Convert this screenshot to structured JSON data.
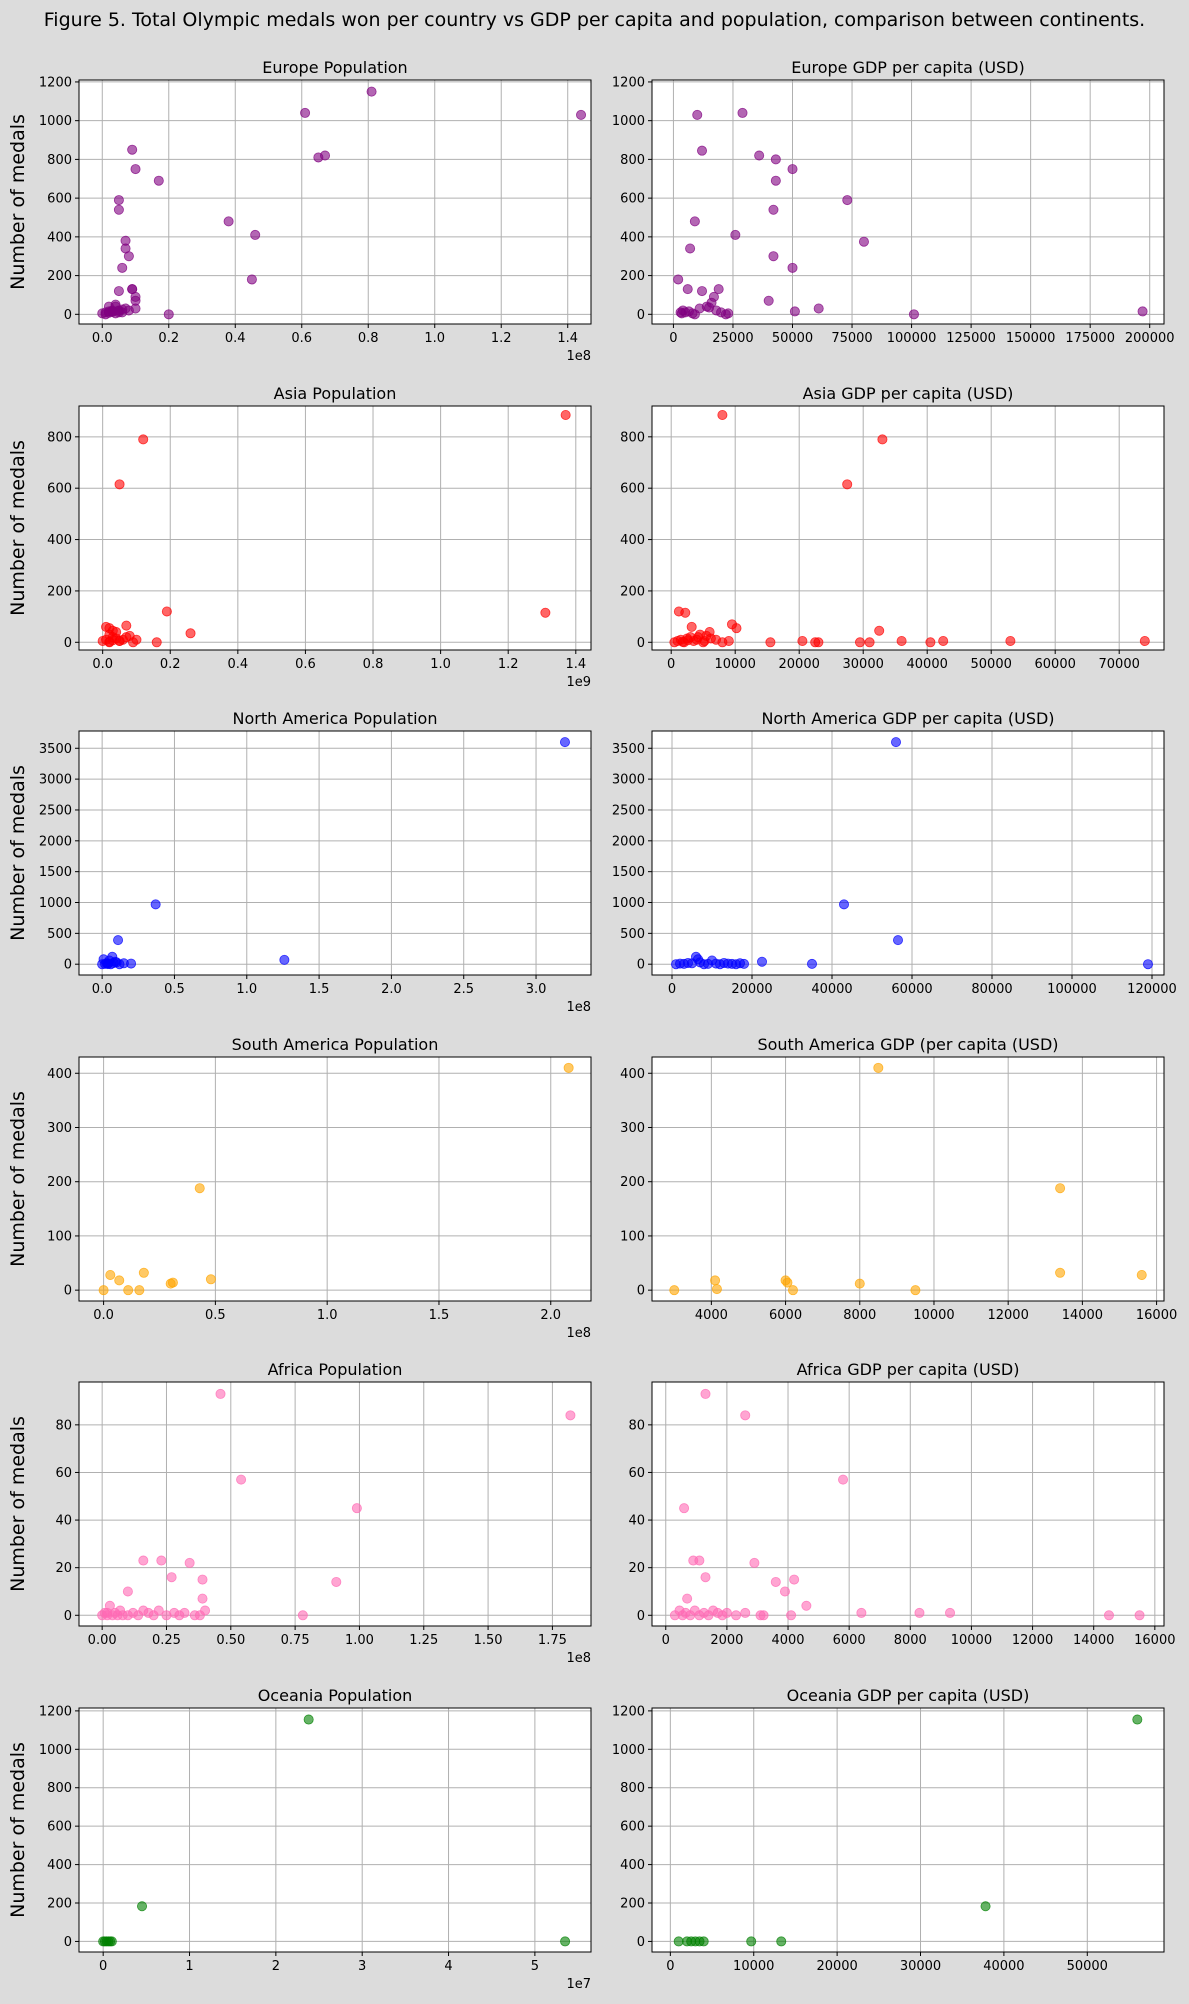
{
  "title": "Figure 5. Total Olympic medals won per country vs GDP per capita and population, comparison between continents.",
  "ylabel": "Number of medals",
  "chart_data": [
    {
      "type": "scatter",
      "title": "Europe Population",
      "xlabel": "",
      "ylabel": "Number of medals",
      "color": "#800080",
      "x_offset_label": "1e8",
      "xlim": [
        -0.07,
        1.47
      ],
      "ylim": [
        -50,
        1210
      ],
      "xticks": [
        0,
        0.2,
        0.4,
        0.6,
        0.8,
        1.0,
        1.2,
        1.4
      ],
      "xtick_labels": [
        "0.0",
        "0.2",
        "0.4",
        "0.6",
        "0.8",
        "1.0",
        "1.2",
        "1.4"
      ],
      "yticks": [
        0,
        200,
        400,
        600,
        800,
        1000,
        1200
      ],
      "x": [
        0.0,
        0.01,
        0.02,
        0.03,
        0.04,
        0.05,
        0.06,
        0.07,
        0.02,
        0.03,
        0.04,
        0.05,
        0.01,
        0.02,
        0.03,
        0.05,
        0.06,
        0.08,
        0.1,
        0.09,
        0.1,
        0.1,
        0.09,
        0.08,
        0.07,
        0.07,
        0.06,
        0.05,
        0.05,
        0.05,
        0.04,
        0.17,
        0.09,
        0.1,
        0.2,
        0.38,
        0.45,
        0.46,
        0.61,
        0.65,
        0.67,
        0.81,
        1.44
      ],
      "y": [
        5,
        10,
        15,
        20,
        5,
        10,
        25,
        30,
        40,
        15,
        50,
        20,
        0,
        8,
        12,
        18,
        10,
        20,
        30,
        130,
        90,
        70,
        130,
        300,
        380,
        340,
        240,
        590,
        540,
        120,
        40,
        690,
        850,
        750,
        0,
        480,
        180,
        410,
        1040,
        810,
        820,
        1150,
        1030
      ]
    },
    {
      "type": "scatter",
      "title": "Europe GDP per capita (USD)",
      "xlabel": "",
      "ylabel": "",
      "color": "#800080",
      "xlim": [
        -9000,
        206000
      ],
      "ylim": [
        -50,
        1210
      ],
      "xticks": [
        0,
        25000,
        50000,
        75000,
        100000,
        125000,
        150000,
        175000,
        200000
      ],
      "xtick_labels": [
        "0",
        "25000",
        "50000",
        "75000",
        "100000",
        "125000",
        "150000",
        "175000",
        "200000"
      ],
      "yticks": [
        0,
        200,
        400,
        600,
        800,
        1000,
        1200
      ],
      "x": [
        2000,
        3500,
        5000,
        6500,
        8000,
        4000,
        9000,
        11000,
        14000,
        16000,
        18000,
        20000,
        22000,
        12000,
        15000,
        17000,
        19000,
        23000,
        3000,
        6000,
        10000,
        7000,
        12000,
        9000,
        26000,
        29000,
        36000,
        40000,
        42000,
        43000,
        42000,
        43000,
        50000,
        51000,
        50000,
        61000,
        73000,
        80000,
        101000,
        197000
      ],
      "y": [
        180,
        5,
        10,
        15,
        5,
        20,
        0,
        30,
        40,
        60,
        20,
        10,
        0,
        120,
        35,
        90,
        130,
        5,
        10,
        130,
        1030,
        340,
        845,
        480,
        410,
        1040,
        820,
        70,
        540,
        800,
        300,
        690,
        750,
        15,
        240,
        30,
        590,
        375,
        0,
        15
      ]
    },
    {
      "type": "scatter",
      "title": "Asia Population",
      "xlabel": "",
      "ylabel": "Number of medals",
      "color": "#ff0000",
      "x_offset_label": "1e9",
      "xlim": [
        -0.07,
        1.445
      ],
      "ylim": [
        -30,
        920
      ],
      "xticks": [
        0,
        0.2,
        0.4,
        0.6,
        0.8,
        1.0,
        1.2,
        1.4
      ],
      "xtick_labels": [
        "0.0",
        "0.2",
        "0.4",
        "0.6",
        "0.8",
        "1.0",
        "1.2",
        "1.4"
      ],
      "yticks": [
        0,
        200,
        400,
        600,
        800
      ],
      "x": [
        0.0,
        0.01,
        0.02,
        0.03,
        0.04,
        0.02,
        0.03,
        0.01,
        0.05,
        0.06,
        0.07,
        0.02,
        0.04,
        0.08,
        0.07,
        0.09,
        0.1,
        0.02,
        0.03,
        0.05,
        0.12,
        0.05,
        0.16,
        0.19,
        0.26,
        1.31,
        1.37
      ],
      "y": [
        5,
        10,
        0,
        20,
        15,
        30,
        45,
        60,
        5,
        10,
        20,
        55,
        40,
        25,
        65,
        0,
        10,
        2,
        8,
        5,
        790,
        615,
        0,
        120,
        35,
        115,
        885
      ]
    },
    {
      "type": "scatter",
      "title": "Asia GDP per capita (USD)",
      "xlabel": "",
      "ylabel": "",
      "color": "#ff0000",
      "xlim": [
        -3000,
        77000
      ],
      "ylim": [
        -30,
        920
      ],
      "xticks": [
        0,
        10000,
        20000,
        30000,
        40000,
        50000,
        60000,
        70000
      ],
      "xtick_labels": [
        "0",
        "10000",
        "20000",
        "30000",
        "40000",
        "50000",
        "60000",
        "70000"
      ],
      "yticks": [
        0,
        200,
        400,
        600,
        800
      ],
      "x": [
        500,
        1000,
        1500,
        2000,
        2500,
        3000,
        3500,
        4000,
        4500,
        5000,
        5500,
        6000,
        1200,
        2200,
        3200,
        4200,
        5200,
        6200,
        7000,
        8000,
        9000,
        9500,
        10200,
        1800,
        2600,
        15500,
        20500,
        22500,
        23000,
        29500,
        31000,
        32500,
        36000,
        40500,
        42500,
        53000,
        74000,
        8000,
        27500,
        33000
      ],
      "y": [
        0,
        5,
        10,
        0,
        15,
        20,
        5,
        10,
        30,
        0,
        25,
        40,
        120,
        115,
        60,
        20,
        5,
        15,
        10,
        0,
        5,
        70,
        55,
        2,
        8,
        0,
        5,
        0,
        0,
        0,
        0,
        45,
        5,
        0,
        5,
        5,
        5,
        885,
        615,
        790
      ]
    },
    {
      "type": "scatter",
      "title": "North America Population",
      "xlabel": "",
      "ylabel": "Number of medals",
      "color": "#0000ff",
      "x_offset_label": "1e8",
      "xlim": [
        -0.16,
        3.38
      ],
      "ylim": [
        -175,
        3780
      ],
      "xticks": [
        0,
        0.5,
        1.0,
        1.5,
        2.0,
        2.5,
        3.0
      ],
      "xtick_labels": [
        "0.0",
        "0.5",
        "1.0",
        "1.5",
        "2.0",
        "2.5",
        "3.0"
      ],
      "yticks": [
        0,
        500,
        1000,
        1500,
        2000,
        2500,
        3000,
        3500
      ],
      "x": [
        0.0,
        0.02,
        0.04,
        0.06,
        0.08,
        0.1,
        0.03,
        0.05,
        0.07,
        0.09,
        0.15,
        0.2,
        0.12,
        0.01,
        0.04,
        0.11,
        0.37,
        1.26,
        3.2
      ],
      "y": [
        0,
        5,
        10,
        0,
        20,
        30,
        15,
        60,
        120,
        40,
        15,
        10,
        0,
        80,
        2,
        390,
        970,
        70,
        3600
      ]
    },
    {
      "type": "scatter",
      "title": "North America GDP per capita (USD)",
      "xlabel": "",
      "ylabel": "",
      "color": "#0000ff",
      "xlim": [
        -5000,
        123000
      ],
      "ylim": [
        -175,
        3780
      ],
      "xticks": [
        0,
        20000,
        40000,
        60000,
        80000,
        100000,
        120000
      ],
      "xtick_labels": [
        "0",
        "20000",
        "40000",
        "60000",
        "80000",
        "100000",
        "120000"
      ],
      "yticks": [
        0,
        500,
        1000,
        1500,
        2000,
        2500,
        3000,
        3500
      ],
      "x": [
        1000,
        2000,
        3000,
        4000,
        5000,
        6000,
        7000,
        8000,
        9000,
        10000,
        11000,
        12000,
        13000,
        14000,
        15000,
        16000,
        17000,
        18000,
        22500,
        35000,
        6500,
        43000,
        56500,
        56000,
        119000
      ],
      "y": [
        0,
        10,
        5,
        20,
        15,
        120,
        30,
        0,
        5,
        60,
        10,
        0,
        20,
        10,
        5,
        0,
        15,
        5,
        40,
        5,
        80,
        970,
        390,
        3600,
        0
      ]
    },
    {
      "type": "scatter",
      "title": "South America Population",
      "xlabel": "",
      "ylabel": "Number of medals",
      "color": "#ffa500",
      "x_offset_label": "1e8",
      "xlim": [
        -0.11,
        2.18
      ],
      "ylim": [
        -20,
        430
      ],
      "xticks": [
        0,
        0.5,
        1.0,
        1.5,
        2.0
      ],
      "xtick_labels": [
        "0.0",
        "0.5",
        "1.0",
        "1.5",
        "2.0"
      ],
      "yticks": [
        0,
        100,
        200,
        300,
        400
      ],
      "x": [
        0.0,
        0.03,
        0.07,
        0.11,
        0.16,
        0.18,
        0.3,
        0.31,
        0.43,
        0.48,
        2.08
      ],
      "y": [
        0,
        28,
        18,
        0,
        0,
        32,
        12,
        14,
        188,
        20,
        410
      ]
    },
    {
      "type": "scatter",
      "title": "South America GDP (per capita (USD)",
      "xlabel": "",
      "ylabel": "",
      "color": "#ffa500",
      "xlim": [
        2400,
        16200
      ],
      "ylim": [
        -20,
        430
      ],
      "xticks": [
        4000,
        6000,
        8000,
        10000,
        12000,
        14000,
        16000
      ],
      "xtick_labels": [
        "4000",
        "6000",
        "8000",
        "10000",
        "12000",
        "14000",
        "16000"
      ],
      "yticks": [
        0,
        100,
        200,
        300,
        400
      ],
      "x": [
        3000,
        4100,
        4150,
        6000,
        6050,
        6200,
        8000,
        8500,
        9500,
        13400,
        13400,
        15600
      ],
      "y": [
        0,
        18,
        2,
        18,
        14,
        0,
        12,
        410,
        0,
        188,
        32,
        28
      ]
    },
    {
      "type": "scatter",
      "title": "Africa Population",
      "xlabel": "",
      "ylabel": "Number of medals",
      "color": "#ff69b4",
      "x_offset_label": "1e8",
      "xlim": [
        -0.09,
        1.9
      ],
      "ylim": [
        -4.5,
        98
      ],
      "xticks": [
        0,
        0.25,
        0.5,
        0.75,
        1.0,
        1.25,
        1.5,
        1.75
      ],
      "xtick_labels": [
        "0.00",
        "0.25",
        "0.50",
        "0.75",
        "1.00",
        "1.25",
        "1.50",
        "1.75"
      ],
      "yticks": [
        0,
        20,
        40,
        60,
        80
      ],
      "x": [
        0.0,
        0.01,
        0.02,
        0.03,
        0.04,
        0.05,
        0.06,
        0.07,
        0.08,
        0.1,
        0.12,
        0.14,
        0.16,
        0.18,
        0.2,
        0.22,
        0.25,
        0.28,
        0.3,
        0.32,
        0.36,
        0.38,
        0.02,
        0.1,
        0.16,
        0.23,
        0.27,
        0.34,
        0.39,
        0.39,
        0.4,
        0.46,
        0.54,
        0.78,
        0.91,
        0.99,
        1.82
      ],
      "y": [
        0,
        1,
        0,
        4,
        0,
        1,
        0,
        2,
        0,
        0,
        1,
        0,
        2,
        1,
        0,
        2,
        0,
        1,
        0,
        1,
        0,
        0,
        1,
        10,
        23,
        23,
        16,
        22,
        15,
        7,
        2,
        93,
        57,
        0,
        14,
        45,
        84
      ]
    },
    {
      "type": "scatter",
      "title": "Africa GDP per capita (USD)",
      "xlabel": "",
      "ylabel": "",
      "color": "#ff69b4",
      "xlim": [
        -450,
        16300
      ],
      "ylim": [
        -4.5,
        98
      ],
      "xticks": [
        0,
        2000,
        4000,
        6000,
        8000,
        10000,
        12000,
        14000,
        16000
      ],
      "xtick_labels": [
        "0",
        "2000",
        "4000",
        "6000",
        "8000",
        "10000",
        "12000",
        "14000",
        "16000"
      ],
      "yticks": [
        0,
        20,
        40,
        60,
        80
      ],
      "x": [
        300,
        450,
        550,
        650,
        800,
        950,
        1100,
        1250,
        1400,
        1550,
        1700,
        1850,
        2000,
        2300,
        2600,
        3100,
        3200,
        4100,
        600,
        700,
        900,
        1100,
        1300,
        1300,
        2600,
        2900,
        3600,
        3900,
        4200,
        4600,
        5800,
        6400,
        8300,
        9300,
        14500,
        15500
      ],
      "y": [
        0,
        2,
        0,
        1,
        0,
        2,
        0,
        1,
        0,
        2,
        1,
        0,
        1,
        0,
        1,
        0,
        0,
        0,
        45,
        7,
        23,
        23,
        93,
        16,
        84,
        22,
        14,
        10,
        15,
        4,
        57,
        1,
        1,
        1,
        0,
        0
      ]
    },
    {
      "type": "scatter",
      "title": "Oceania Population",
      "xlabel": "",
      "ylabel": "Number of medals",
      "color": "#008000",
      "x_offset_label": "1e7",
      "xlim": [
        -0.28,
        5.65
      ],
      "ylim": [
        -55,
        1215
      ],
      "xticks": [
        0,
        1,
        2,
        3,
        4,
        5
      ],
      "xtick_labels": [
        "0",
        "1",
        "2",
        "3",
        "4",
        "5"
      ],
      "yticks": [
        0,
        200,
        400,
        600,
        800,
        1000,
        1200
      ],
      "x": [
        0.0,
        0.02,
        0.04,
        0.06,
        0.08,
        0.1,
        0.45,
        2.38,
        5.35
      ],
      "y": [
        0,
        0,
        0,
        0,
        0,
        0,
        183,
        1155,
        0
      ]
    },
    {
      "type": "scatter",
      "title": "Oceania GDP per capita (USD)",
      "xlabel": "",
      "ylabel": "",
      "color": "#008000",
      "xlim": [
        -2200,
        59200
      ],
      "ylim": [
        -55,
        1215
      ],
      "xticks": [
        0,
        10000,
        20000,
        30000,
        40000,
        50000
      ],
      "xtick_labels": [
        "0",
        "10000",
        "20000",
        "30000",
        "40000",
        "50000"
      ],
      "yticks": [
        0,
        200,
        400,
        600,
        800,
        1000,
        1200
      ],
      "x": [
        1000,
        2000,
        2500,
        3000,
        3500,
        4000,
        9700,
        13300,
        37800,
        56000
      ],
      "y": [
        0,
        0,
        0,
        0,
        0,
        0,
        0,
        0,
        183,
        1155
      ]
    }
  ]
}
